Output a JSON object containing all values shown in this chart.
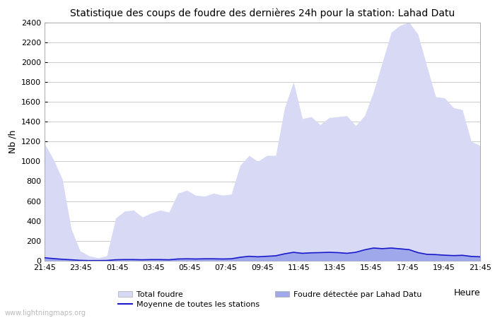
{
  "title": "Statistique des coups de foudre des dernières 24h pour la station: Lahad Datu",
  "xlabel": "Heure",
  "ylabel": "Nb /h",
  "xlim_labels": [
    "21:45",
    "23:45",
    "01:45",
    "03:45",
    "05:45",
    "07:45",
    "09:45",
    "11:45",
    "13:45",
    "15:45",
    "17:45",
    "19:45",
    "21:45"
  ],
  "ylim": [
    0,
    2400
  ],
  "yticks": [
    0,
    200,
    400,
    600,
    800,
    1000,
    1200,
    1400,
    1600,
    1800,
    2000,
    2200,
    2400
  ],
  "background_color": "#ffffff",
  "plot_bg_color": "#ffffff",
  "grid_color": "#cccccc",
  "total_foudre_color": "#d8daf5",
  "local_foudre_color": "#9fa8ea",
  "moyenne_color": "#1a1acc",
  "watermark": "www.lightningmaps.org",
  "total_foudre": [
    1180,
    1020,
    820,
    320,
    100,
    50,
    30,
    50,
    430,
    500,
    510,
    440,
    480,
    510,
    490,
    680,
    710,
    660,
    650,
    680,
    660,
    670,
    960,
    1060,
    1000,
    1060,
    1060,
    1540,
    1800,
    1430,
    1450,
    1370,
    1440,
    1450,
    1460,
    1360,
    1460,
    1700,
    2000,
    2300,
    2370,
    2400,
    2280,
    1960,
    1650,
    1640,
    1540,
    1520,
    1200,
    1160
  ],
  "local_foudre": [
    30,
    25,
    18,
    10,
    4,
    2,
    2,
    3,
    15,
    18,
    18,
    14,
    18,
    18,
    14,
    22,
    25,
    22,
    24,
    25,
    22,
    25,
    40,
    50,
    44,
    50,
    55,
    75,
    90,
    82,
    85,
    88,
    90,
    88,
    82,
    90,
    115,
    135,
    130,
    135,
    128,
    120,
    88,
    70,
    68,
    62,
    58,
    60,
    48,
    44
  ],
  "moyenne_stations": [
    30,
    22,
    15,
    10,
    4,
    2,
    2,
    3,
    10,
    12,
    12,
    10,
    12,
    12,
    10,
    18,
    20,
    18,
    20,
    20,
    18,
    20,
    35,
    45,
    40,
    45,
    50,
    70,
    85,
    75,
    80,
    82,
    85,
    82,
    75,
    85,
    110,
    128,
    122,
    128,
    120,
    112,
    82,
    65,
    62,
    56,
    52,
    55,
    44,
    40
  ],
  "n_points": 50
}
